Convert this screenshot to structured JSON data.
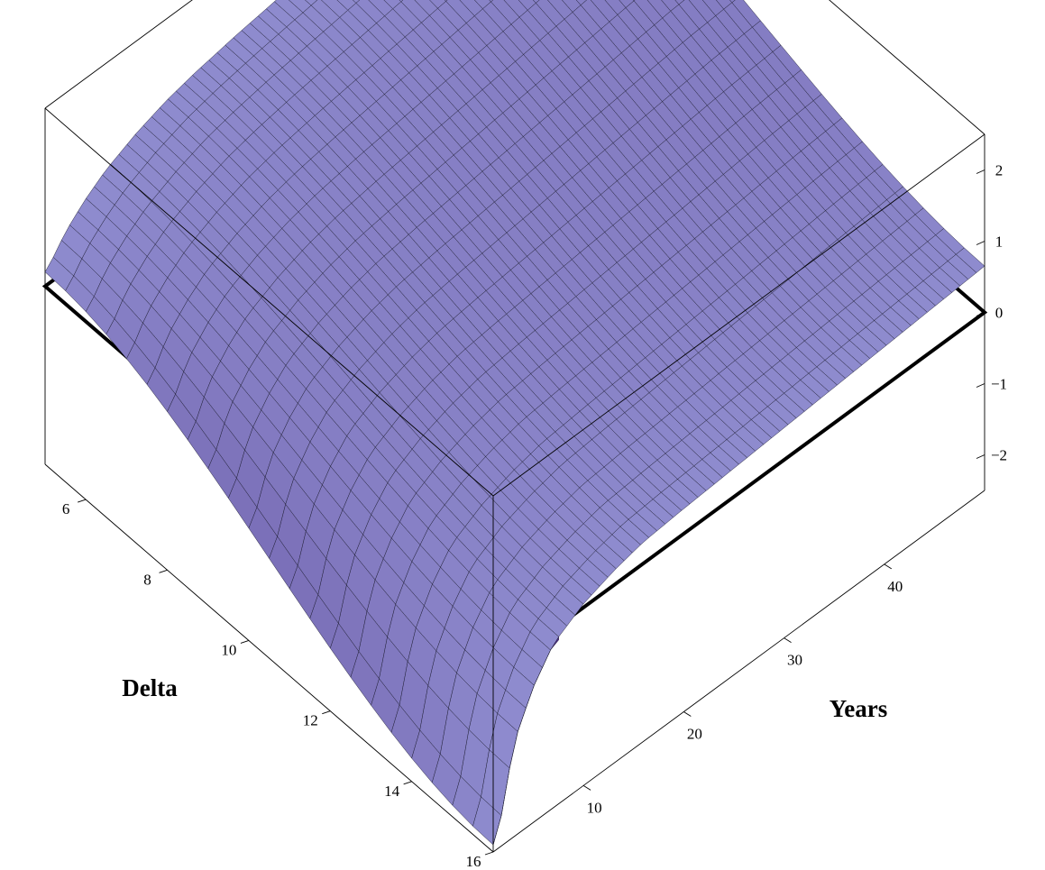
{
  "chart_data": {
    "type": "surface3d",
    "title": "",
    "x_axis": {
      "label": "Delta",
      "ticks": [
        6,
        8,
        10,
        12,
        14,
        16
      ],
      "range": [
        5,
        16
      ]
    },
    "y_axis": {
      "label": "Years",
      "ticks": [
        10,
        20,
        30,
        40
      ],
      "range": [
        1,
        50
      ]
    },
    "z_axis": {
      "label": "",
      "ticks": [
        -2,
        -1,
        0,
        1,
        2
      ],
      "range": [
        -2.5,
        2.5
      ]
    },
    "reference_plane_z": 0,
    "surface_color": "#8f8ccf",
    "surface_dark_color": "#4a2a80",
    "mesh_color": "#000000",
    "surface_profile": {
      "description_note": "",
      "years": [
        1,
        2,
        3,
        5,
        7,
        10,
        13,
        16,
        20,
        25,
        30,
        35,
        40,
        45,
        50
      ],
      "height_at_delta_5": [
        0.2,
        0.35,
        0.55,
        0.8,
        1.0,
        1.2,
        1.35,
        1.45,
        1.55,
        1.65,
        1.75,
        1.85,
        1.95,
        2.05,
        2.1
      ],
      "height_at_delta_16": [
        -2.4,
        -2.0,
        -1.2,
        -0.6,
        -0.2,
        0.05,
        0.2,
        0.3,
        0.35,
        0.4,
        0.45,
        0.5,
        0.55,
        0.6,
        0.65
      ]
    }
  }
}
